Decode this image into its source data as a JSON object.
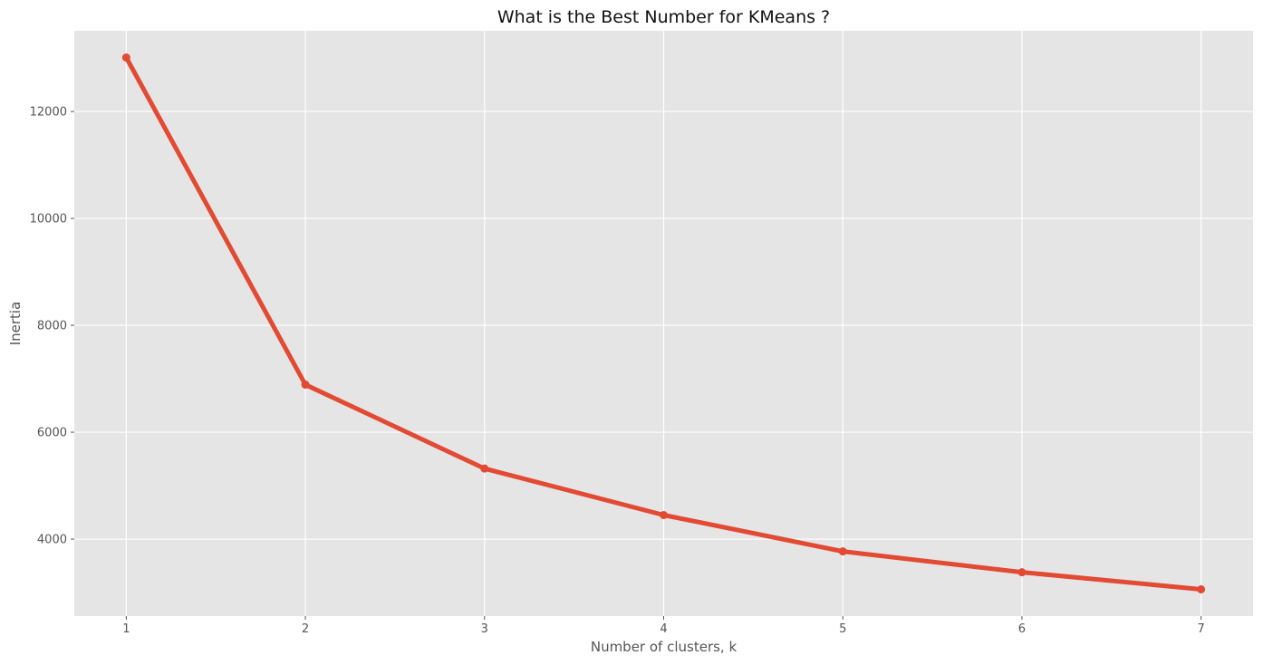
{
  "chart_data": {
    "type": "line",
    "title": "What is the Best Number for KMeans ?",
    "xlabel": "Number of clusters, k",
    "ylabel": "Inertia",
    "x": [
      1,
      2,
      3,
      4,
      5,
      6,
      7
    ],
    "series": [
      {
        "values": [
          13010,
          6890,
          5320,
          4450,
          3770,
          3380,
          3060
        ]
      }
    ],
    "xticks": [
      1,
      2,
      3,
      4,
      5,
      6,
      7
    ],
    "yticks": [
      4000,
      6000,
      8000,
      10000,
      12000
    ],
    "xlim": [
      0.71,
      7.29
    ],
    "ylim": [
      2560,
      13510
    ],
    "grid": true,
    "legend": "none",
    "style": {
      "background": "#e5e5e5",
      "grid_color": "#ffffff",
      "line_color": "#e24a33"
    }
  }
}
